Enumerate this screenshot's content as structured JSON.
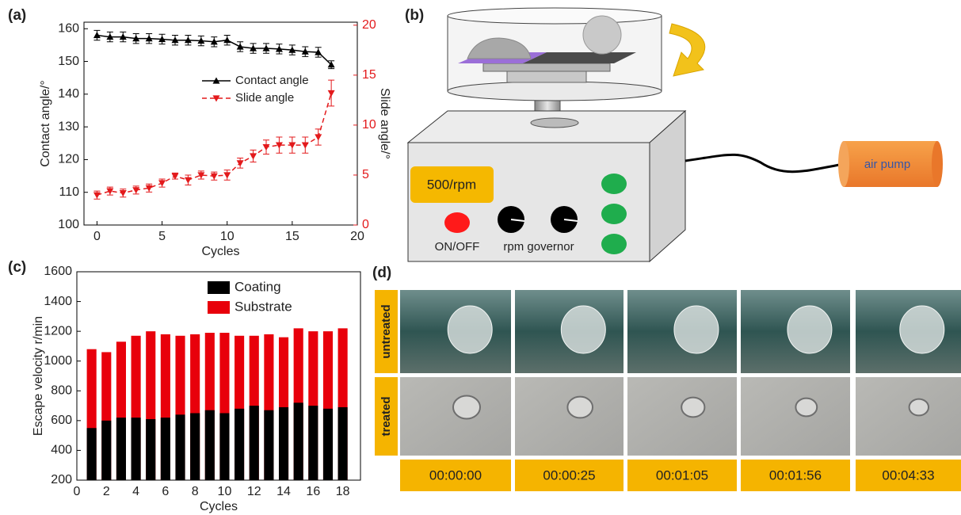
{
  "panel_labels": [
    "(a)",
    "(b)",
    "(c)",
    "(d)"
  ],
  "chart_data": [
    {
      "type": "line",
      "xlabel": "Cycles",
      "ylabel": "Contact angle/°",
      "y2label": "Slide angle/°",
      "x": [
        0,
        1,
        2,
        3,
        4,
        5,
        6,
        7,
        8,
        9,
        10,
        11,
        12,
        13,
        14,
        15,
        16,
        17,
        18
      ],
      "xlim": [
        -1,
        20
      ],
      "xticks": [
        0,
        5,
        10,
        15,
        20
      ],
      "ylim": [
        100,
        162
      ],
      "yticks": [
        100,
        110,
        120,
        130,
        140,
        150,
        160
      ],
      "y2lim": [
        0,
        20.3
      ],
      "y2ticks": [
        0,
        5,
        10,
        15,
        20
      ],
      "legend": "upper right",
      "series": [
        {
          "name": "Contact angle",
          "color": "#000000",
          "marker": "triangle-up",
          "values": [
            158,
            157.5,
            157.5,
            157,
            157,
            156.8,
            156.5,
            156.5,
            156.3,
            156,
            156.5,
            154.5,
            154,
            154,
            153.8,
            153.5,
            153,
            152.8,
            149
          ],
          "errors": [
            1.5,
            1.5,
            1.5,
            1.5,
            1.5,
            1.5,
            1.5,
            1.5,
            1.5,
            1.5,
            1.5,
            1.5,
            1.5,
            1.5,
            1.5,
            1.5,
            1.5,
            1.5,
            1.2
          ]
        },
        {
          "name": "Slide angle",
          "color": "#e31a1c",
          "marker": "triangle-down",
          "dash": true,
          "axis": "y2",
          "values": [
            3.0,
            3.4,
            3.2,
            3.5,
            3.7,
            4.2,
            4.9,
            4.5,
            5.0,
            4.9,
            5.0,
            6.2,
            6.9,
            7.8,
            8.0,
            8.0,
            8.0,
            8.8,
            13.2
          ],
          "errors": [
            0.4,
            0.4,
            0.4,
            0.4,
            0.4,
            0.4,
            0.3,
            0.5,
            0.4,
            0.4,
            0.5,
            0.5,
            0.6,
            0.7,
            0.8,
            0.8,
            0.8,
            0.8,
            1.3
          ]
        }
      ]
    },
    {
      "type": "bar",
      "xlabel": "Cycles",
      "ylabel": "Escape velocity r/min",
      "x": [
        1,
        2,
        3,
        4,
        5,
        6,
        7,
        8,
        9,
        10,
        11,
        12,
        13,
        14,
        15,
        16,
        17,
        18
      ],
      "xlim": [
        0,
        19.2
      ],
      "xticks": [
        0,
        2,
        4,
        6,
        8,
        10,
        12,
        14,
        16,
        18
      ],
      "ylim": [
        200,
        1600
      ],
      "yticks": [
        200,
        400,
        600,
        800,
        1000,
        1200,
        1400,
        1600
      ],
      "legend": "upper right",
      "series": [
        {
          "name": "Coating",
          "color": "#000000",
          "values": [
            550,
            600,
            620,
            620,
            610,
            620,
            640,
            650,
            670,
            650,
            680,
            700,
            670,
            690,
            720,
            700,
            680,
            690
          ]
        },
        {
          "name": "Substrate",
          "color": "#e8000b",
          "values": [
            1080,
            1060,
            1130,
            1170,
            1200,
            1180,
            1170,
            1180,
            1190,
            1190,
            1170,
            1170,
            1180,
            1160,
            1220,
            1200,
            1200,
            1220
          ]
        }
      ]
    }
  ],
  "diagram": {
    "speed": "500/rpm",
    "switch": "ON/OFF",
    "governor": "rpm governor",
    "pump": "air pump"
  },
  "photos": {
    "rows": [
      "untreated",
      "treated"
    ],
    "times": [
      "00:00:00",
      "00:00:25",
      "00:01:05",
      "00:01:56",
      "00:04:33"
    ]
  }
}
